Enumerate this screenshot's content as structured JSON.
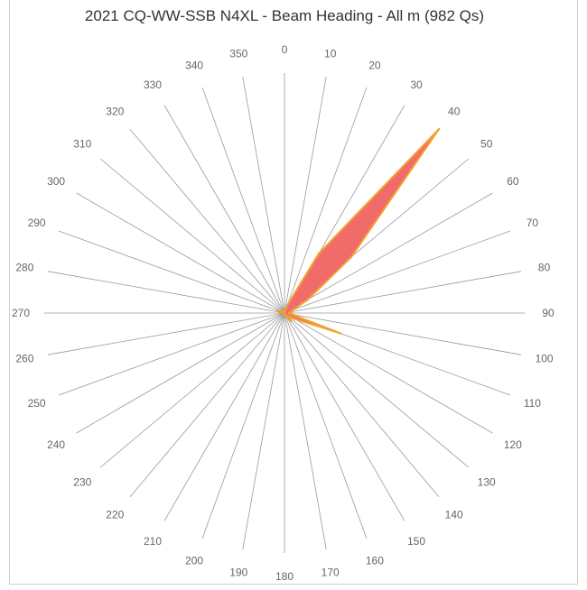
{
  "chart_data": {
    "type": "radar",
    "title": "2021 CQ-WW-SSB N4XL - Beam Heading - All m (982 Qs)",
    "categories": [
      "0",
      "10",
      "20",
      "30",
      "40",
      "50",
      "60",
      "70",
      "80",
      "90",
      "100",
      "110",
      "120",
      "130",
      "140",
      "150",
      "160",
      "170",
      "180",
      "190",
      "200",
      "210",
      "220",
      "230",
      "240",
      "250",
      "260",
      "270",
      "280",
      "290",
      "300",
      "310",
      "320",
      "330",
      "340",
      "350"
    ],
    "series": [
      {
        "values": [
          3,
          4,
          28,
          230,
          800,
          290,
          90,
          30,
          25,
          15,
          25,
          200,
          40,
          15,
          35,
          10,
          8,
          5,
          5,
          5,
          5,
          5,
          5,
          5,
          5,
          5,
          5,
          5,
          18,
          25,
          10,
          5,
          5,
          5,
          5,
          5
        ],
        "fill": "#f26b6b",
        "stroke": "#f2a12e"
      }
    ],
    "rmax": 800,
    "grid": true,
    "legend": "none"
  }
}
